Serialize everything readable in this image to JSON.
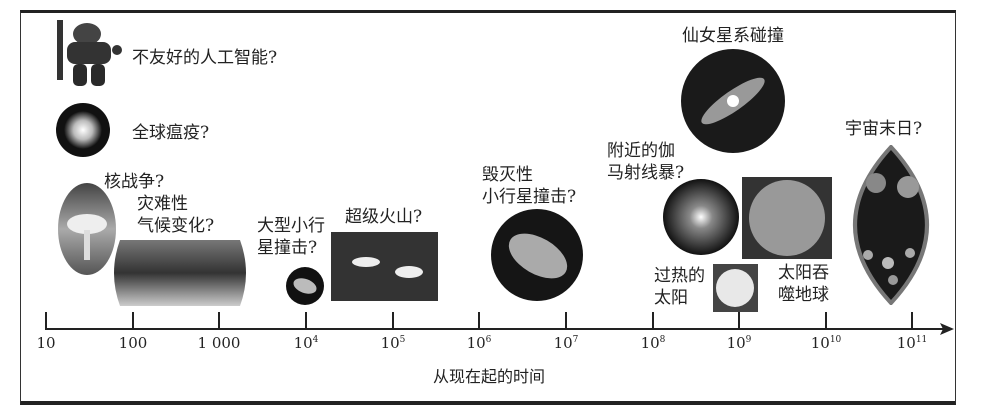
{
  "events": [
    {
      "id": "ai",
      "label": "不友好的人工智能?",
      "icon": "robot-icon"
    },
    {
      "id": "pandemic",
      "label": "全球瘟疫?",
      "icon": "virus-icon"
    },
    {
      "id": "nuclear",
      "label": "核战争?",
      "icon": "mushroom-cloud-icon"
    },
    {
      "id": "climate",
      "label": "灾难性\n气候变化?",
      "icon": "world-map-icon"
    },
    {
      "id": "asteroid_large",
      "label": "大型小行\n星撞击?",
      "icon": "asteroid-icon"
    },
    {
      "id": "supervolcano",
      "label": "超级火山?",
      "icon": "volcano-icon"
    },
    {
      "id": "asteroid_extinction",
      "label": "毁灭性\n小行星撞击?",
      "icon": "asteroid-icon"
    },
    {
      "id": "gamma",
      "label": "附近的伽\n马射线暴?",
      "icon": "gamma-burst-icon"
    },
    {
      "id": "andromeda",
      "label": "仙女星系碰撞",
      "icon": "galaxy-icon"
    },
    {
      "id": "end_universe",
      "label": "宇宙末日?",
      "icon": "universe-icon"
    },
    {
      "id": "hot_sun",
      "label": "过热的\n太阳",
      "icon": "sun-icon"
    },
    {
      "id": "sun_engulf",
      "label": "太阳吞\n噬地球",
      "icon": "red-giant-icon"
    }
  ],
  "axis": {
    "label": "从现在起的时间",
    "ticks": [
      {
        "base": "10",
        "exp": ""
      },
      {
        "base": "100",
        "exp": ""
      },
      {
        "base": "1 000",
        "exp": ""
      },
      {
        "base": "10",
        "exp": "4"
      },
      {
        "base": "10",
        "exp": "5"
      },
      {
        "base": "10",
        "exp": "6"
      },
      {
        "base": "10",
        "exp": "7"
      },
      {
        "base": "10",
        "exp": "8"
      },
      {
        "base": "10",
        "exp": "9"
      },
      {
        "base": "10",
        "exp": "10"
      },
      {
        "base": "10",
        "exp": "11"
      }
    ]
  }
}
